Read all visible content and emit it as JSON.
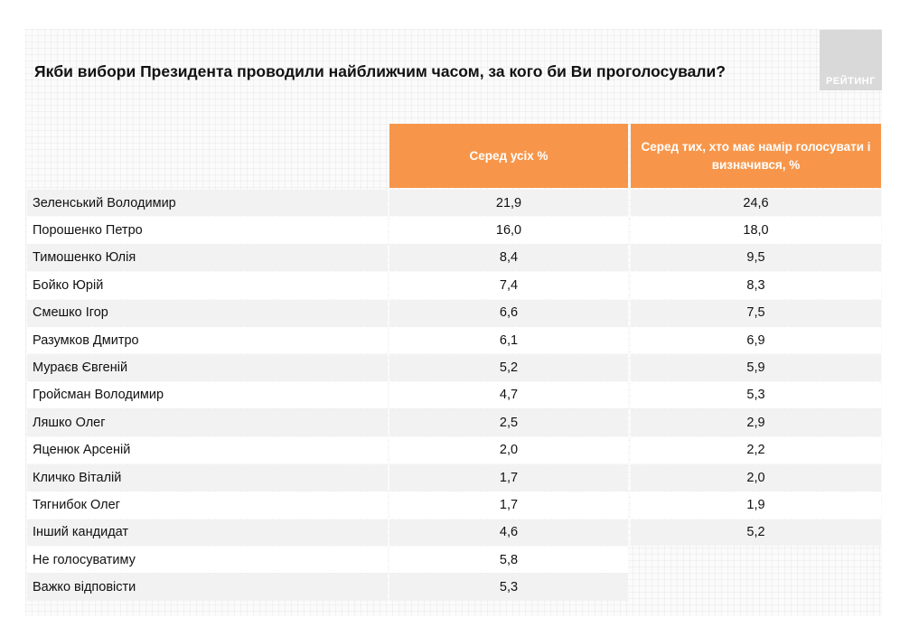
{
  "title": "Якби вибори Президента проводили найближчим часом, за кого би Ви проголосували?",
  "logo_text": "РЕЙТИНГ",
  "colors": {
    "header_bg": "#f7964a",
    "row_alt": "#f2f2f2",
    "logo_bg": "#d9d9d9"
  },
  "chart_data": {
    "type": "table",
    "title": "Якби вибори Президента проводили найближчим часом, за кого би Ви проголосували?",
    "columns": [
      "Серед усіх %",
      "Серед тих, хто має намір голосувати і визначився, %"
    ],
    "rows": [
      {
        "name": "Зеленський Володимир",
        "all": "21,9",
        "decided": "24,6"
      },
      {
        "name": "Порошенко Петро",
        "all": "16,0",
        "decided": "18,0"
      },
      {
        "name": "Тимошенко Юлія",
        "all": "8,4",
        "decided": "9,5"
      },
      {
        "name": "Бойко Юрій",
        "all": "7,4",
        "decided": "8,3"
      },
      {
        "name": "Смешко Ігор",
        "all": "6,6",
        "decided": "7,5"
      },
      {
        "name": "Разумков Дмитро",
        "all": "6,1",
        "decided": "6,9"
      },
      {
        "name": "Мураєв Євгеній",
        "all": "5,2",
        "decided": "5,9"
      },
      {
        "name": "Гройсман Володимир",
        "all": "4,7",
        "decided": "5,3"
      },
      {
        "name": "Ляшко Олег",
        "all": "2,5",
        "decided": "2,9"
      },
      {
        "name": "Яценюк Арсеній",
        "all": "2,0",
        "decided": "2,2"
      },
      {
        "name": "Кличко Віталій",
        "all": "1,7",
        "decided": "2,0"
      },
      {
        "name": "Тягнибок Олег",
        "all": "1,7",
        "decided": "1,9"
      },
      {
        "name": "Інший кандидат",
        "all": "4,6",
        "decided": "5,2"
      },
      {
        "name": "Не голосуватиму",
        "all": "5,8",
        "decided": ""
      },
      {
        "name": "Важко відповісти",
        "all": "5,3",
        "decided": ""
      }
    ]
  }
}
